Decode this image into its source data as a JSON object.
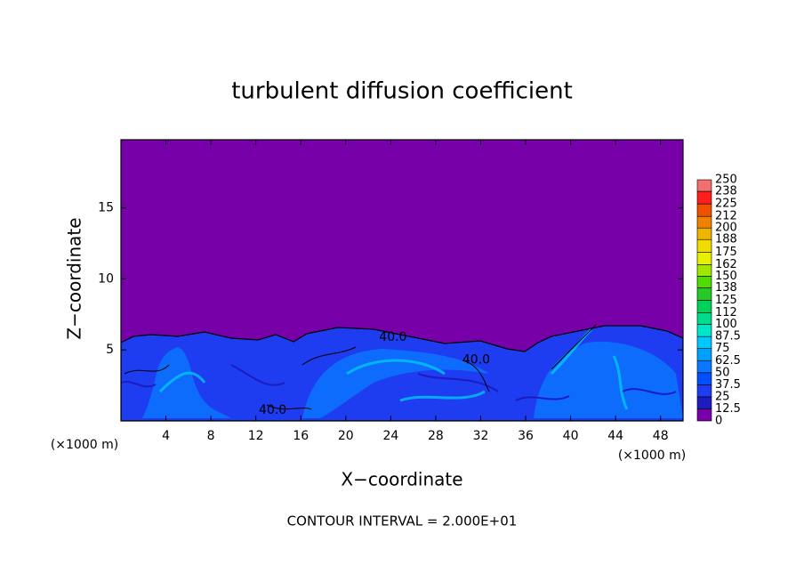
{
  "chart_data": {
    "type": "contour",
    "title": "turbulent diffusion coefficient",
    "xlabel": "X−coordinate",
    "ylabel": "Z−coordinate",
    "x_unit": "(×1000 m)",
    "footnote": "CONTOUR INTERVAL = 2.000E+01",
    "xlim": [
      0,
      50
    ],
    "ylim": [
      0,
      19.8
    ],
    "xticks": [
      4,
      8,
      12,
      16,
      20,
      24,
      28,
      32,
      36,
      40,
      44,
      48
    ],
    "yticks": [
      5,
      10,
      15
    ],
    "contour_labels": [
      {
        "label": "40.0",
        "x": 24.2,
        "y": 5.9
      },
      {
        "label": "40.0",
        "x": 31.6,
        "y": 4.3
      },
      {
        "label": "40.0",
        "x": 13.5,
        "y": 0.75
      }
    ],
    "colorbar": {
      "levels": [
        0,
        12.5,
        25,
        37.5,
        50,
        62.5,
        75,
        87.5,
        100,
        112,
        125,
        138,
        150,
        162,
        175,
        188,
        200,
        212,
        225,
        238,
        250
      ],
      "colors": [
        "#7800a8",
        "#1c1cc0",
        "#1e3cf0",
        "#0050ff",
        "#0a78ff",
        "#00a0ff",
        "#00c8ff",
        "#00e6c8",
        "#00dc8c",
        "#00d25a",
        "#28c828",
        "#50dc00",
        "#a0e600",
        "#e6f000",
        "#f0dc00",
        "#f0b400",
        "#f08200",
        "#f05000",
        "#ff1e1e",
        "#f07070"
      ]
    }
  }
}
